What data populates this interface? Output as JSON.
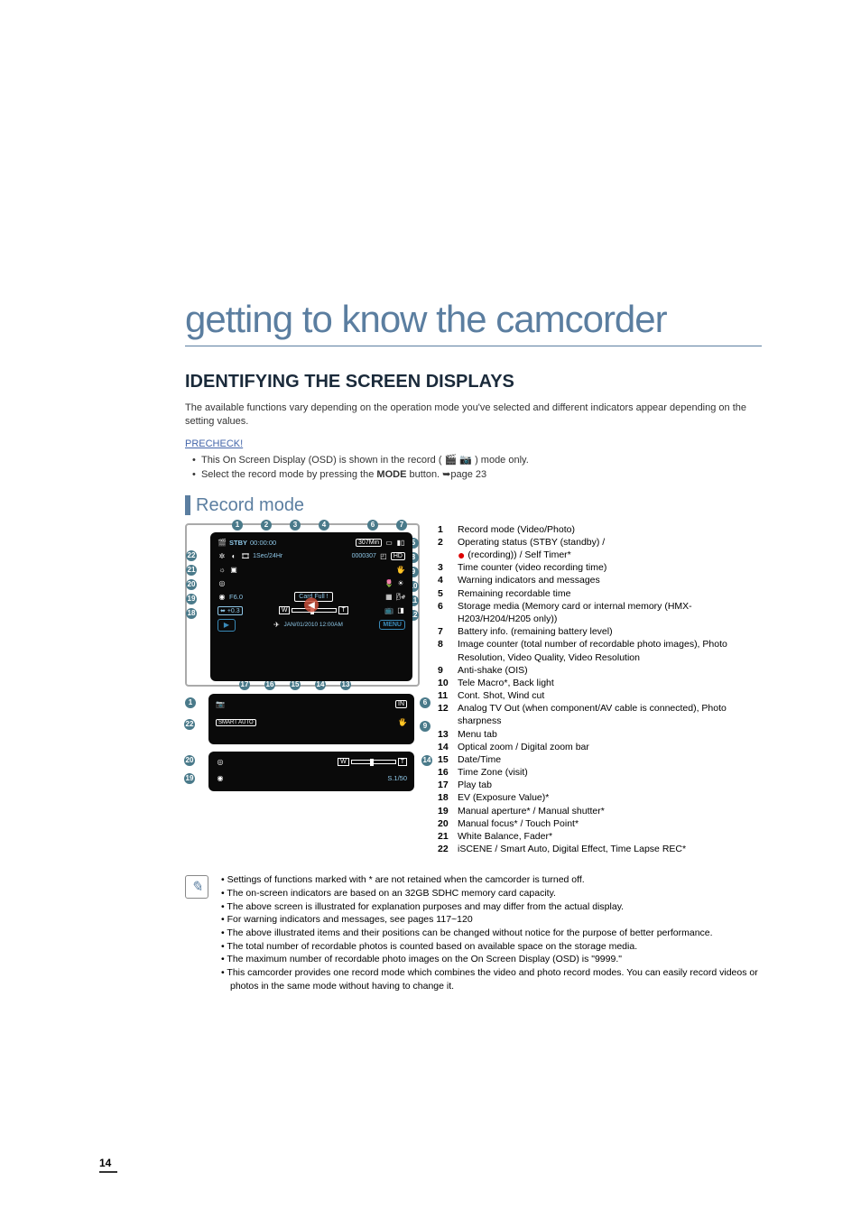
{
  "chapter_title": "getting to know the camcorder",
  "section_title": "IDENTIFYING THE SCREEN DISPLAYS",
  "section_desc": "The available functions vary depending on the operation mode you've selected and different indicators appear depending on the setting values.",
  "precheck_label": "PRECHECK!",
  "precheck_items": [
    "This On Screen Display (OSD) is shown in the record ( 🎬 📷 ) mode only.",
    "Select the record mode by pressing the MODE button. ➥page 23"
  ],
  "subsection_title": "Record mode",
  "lcd": {
    "stby": "STBY",
    "counter": "00:00:00",
    "rem_label": "307Min",
    "rem_time": "0000307",
    "res": "1Sec/24Hr",
    "cardfull": "Card Full !",
    "date": "JAN/01/2010 12:00AM",
    "f60": "F6.0",
    "ev": "+0.3",
    "shutter": "S.1/50",
    "zoom_w": "W",
    "zoom_t": "T",
    "menu": "MENU",
    "smart": "SMART AUTO"
  },
  "legend": [
    {
      "n": "1",
      "t": "Record mode (Video/Photo)"
    },
    {
      "n": "2",
      "t": "Operating status (STBY (standby) / ● (recording)) / Self Timer*",
      "has_dot": true
    },
    {
      "n": "3",
      "t": "Time counter (video recording time)"
    },
    {
      "n": "4",
      "t": "Warning indicators and messages"
    },
    {
      "n": "5",
      "t": "Remaining recordable time"
    },
    {
      "n": "6",
      "t": "Storage media (Memory card or internal memory (HMX-H203/H204/H205 only))"
    },
    {
      "n": "7",
      "t": "Battery info. (remaining battery level)"
    },
    {
      "n": "8",
      "t": "Image counter (total number of recordable photo images), Photo Resolution, Video Quality, Video Resolution"
    },
    {
      "n": "9",
      "t": "Anti-shake (OIS)"
    },
    {
      "n": "10",
      "t": "Tele Macro*, Back light"
    },
    {
      "n": "11",
      "t": "Cont. Shot, Wind cut"
    },
    {
      "n": "12",
      "t": "Analog TV Out (when component/AV cable is connected), Photo sharpness"
    },
    {
      "n": "13",
      "t": "Menu tab"
    },
    {
      "n": "14",
      "t": "Optical zoom / Digital zoom bar"
    },
    {
      "n": "15",
      "t": "Date/Time"
    },
    {
      "n": "16",
      "t": "Time Zone (visit)"
    },
    {
      "n": "17",
      "t": "Play tab"
    },
    {
      "n": "18",
      "t": "EV (Exposure Value)*"
    },
    {
      "n": "19",
      "t": "Manual aperture* / Manual shutter*"
    },
    {
      "n": "20",
      "t": "Manual focus* / Touch Point*"
    },
    {
      "n": "21",
      "t": "White Balance, Fader*"
    },
    {
      "n": "22",
      "t": "iSCENE / Smart Auto, Digital Effect, Time Lapse REC*"
    }
  ],
  "notes": [
    "Settings of functions marked with * are not retained when the camcorder is turned off.",
    "The on-screen indicators are based on an 32GB SDHC memory card capacity.",
    "The above screen is illustrated for explanation purposes and may differ from the actual display.",
    "For warning indicators and messages, see pages 117~120",
    "The above illustrated items and their positions can be changed without notice for the purpose of better performance.",
    "The total number of recordable photos is counted based on available space on the storage media.",
    "The maximum number of recordable photo images on the On Screen Display (OSD) is \"9999.\"",
    "This camcorder provides one record mode which combines the video and photo record modes. You can easily record videos or photos in the same mode without having to change it."
  ],
  "page_number": "14",
  "colors": {
    "accent": "#5b7ea0",
    "lcd_bg": "#0a0a0a",
    "lcd_cyan": "#8fc8e8",
    "marker": "#4a7a8a"
  }
}
